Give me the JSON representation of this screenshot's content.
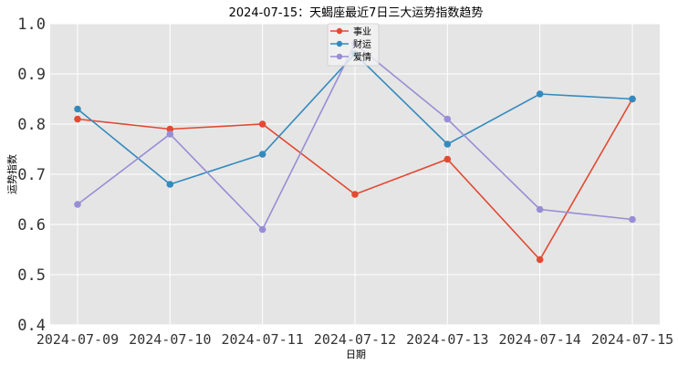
{
  "chart_data": {
    "type": "line",
    "title": "2024-07-15：天蝎座最近7日三大运势指数趋势",
    "xlabel": "日期",
    "ylabel": "运势指数",
    "categories": [
      "2024-07-09",
      "2024-07-10",
      "2024-07-11",
      "2024-07-12",
      "2024-07-13",
      "2024-07-14",
      "2024-07-15"
    ],
    "ylim": [
      0.4,
      1.0
    ],
    "yticks": [
      "0.4",
      "0.5",
      "0.6",
      "0.7",
      "0.8",
      "0.9",
      "1.0"
    ],
    "grid": true,
    "legend_position": "top-center",
    "series": [
      {
        "name": "事业",
        "color": "#E24A33",
        "values": [
          0.81,
          0.79,
          0.8,
          0.66,
          0.73,
          0.53,
          0.85
        ]
      },
      {
        "name": "财运",
        "color": "#348ABD",
        "values": [
          0.83,
          0.68,
          0.74,
          0.94,
          0.76,
          0.86,
          0.85
        ]
      },
      {
        "name": "爱情",
        "color": "#988ED5",
        "values": [
          0.64,
          0.78,
          0.59,
          0.96,
          0.81,
          0.63,
          0.61
        ]
      }
    ]
  }
}
